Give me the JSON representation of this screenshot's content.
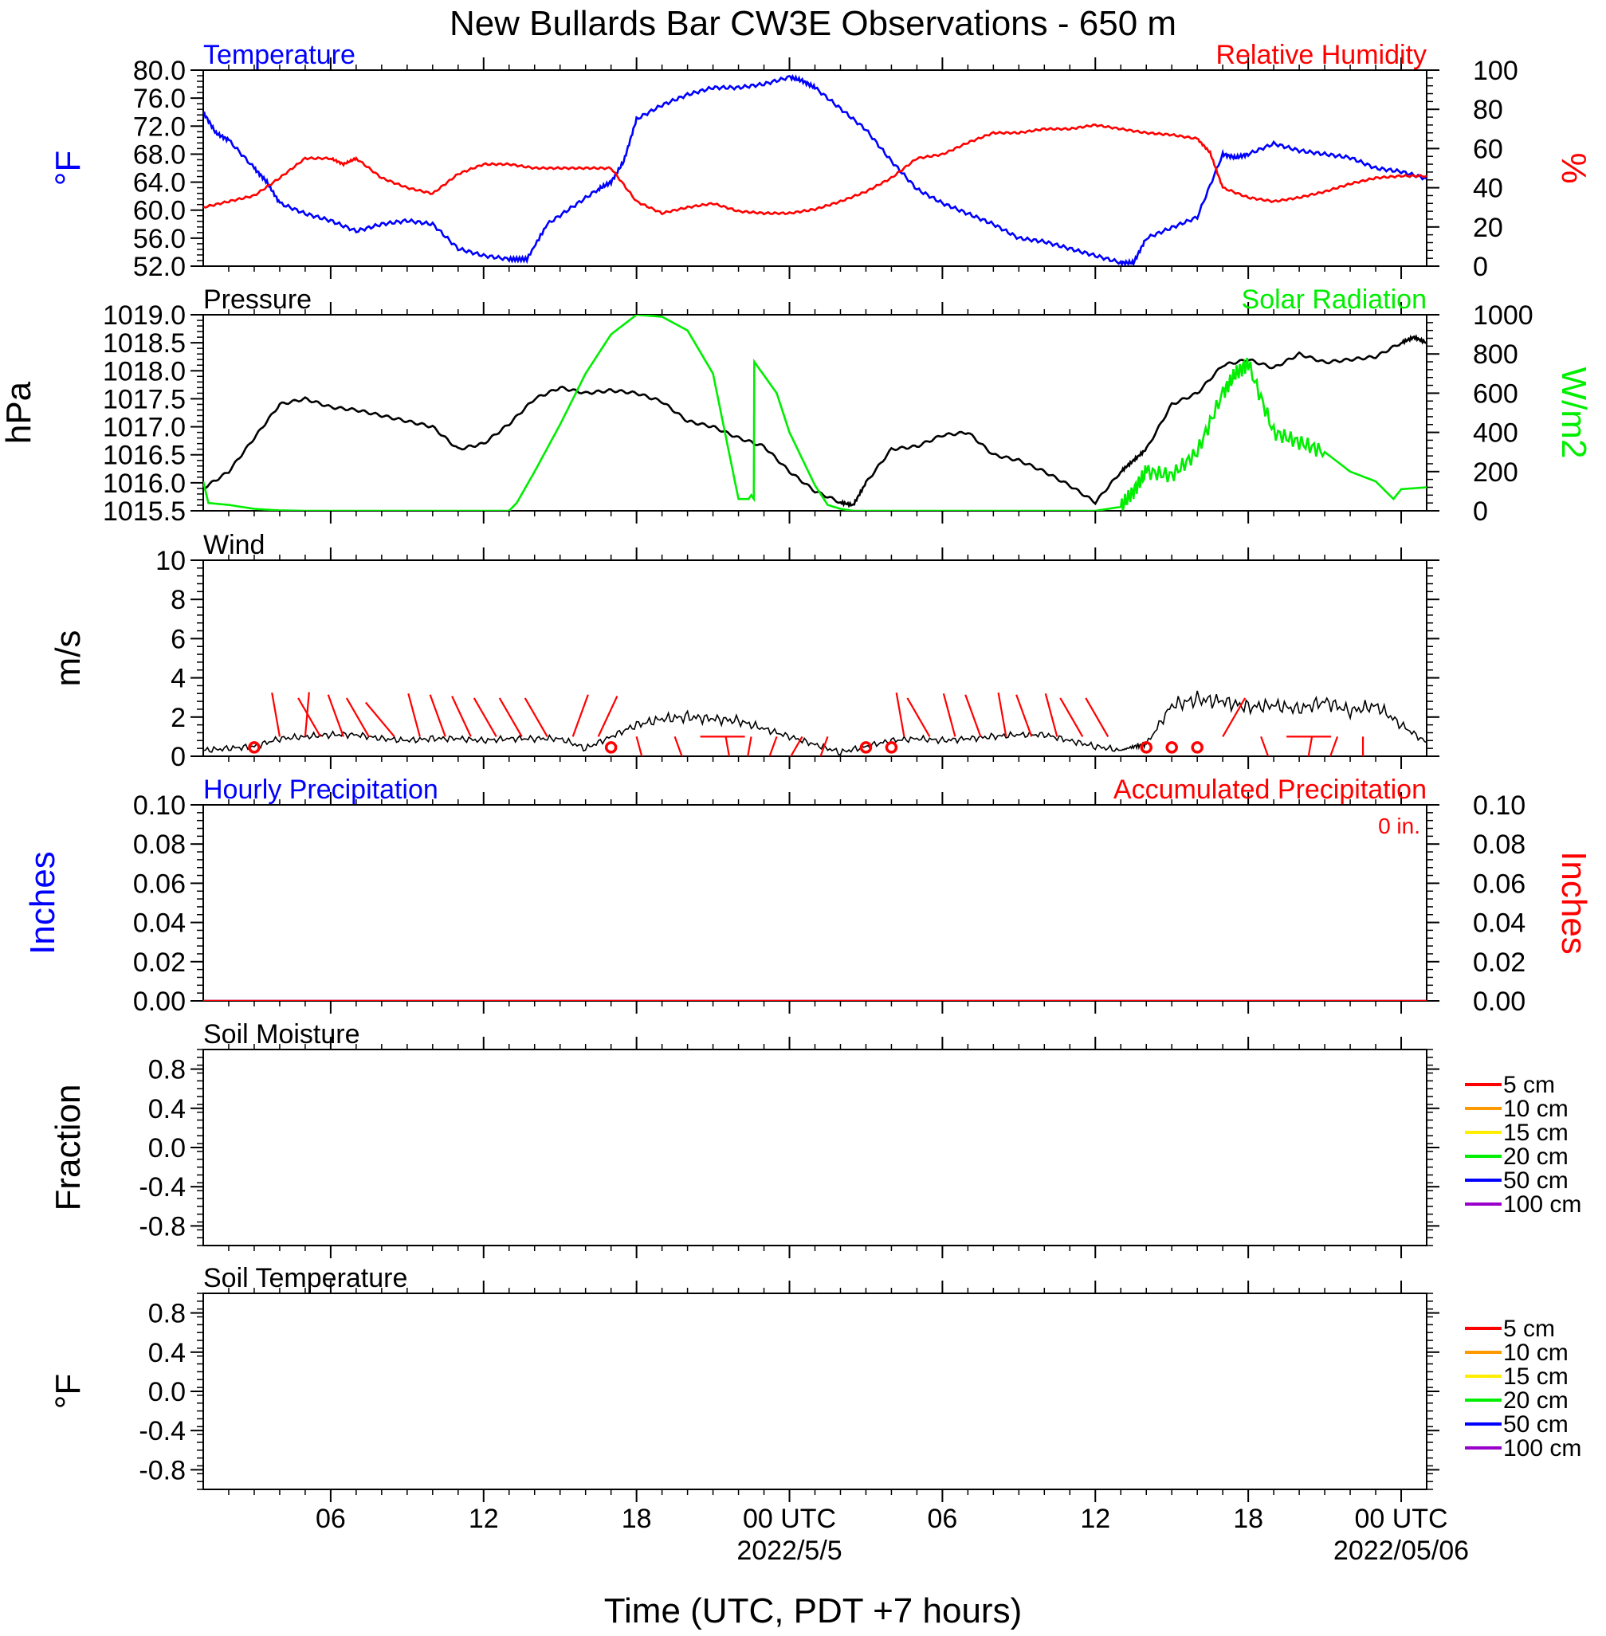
{
  "title": "New Bullards Bar CW3E Observations - 650 m",
  "xaxis": {
    "title": "Time (UTC, PDT +7 hours)",
    "hours_range": [
      0,
      48
    ],
    "ticks": [
      {
        "h": 5,
        "label": "06"
      },
      {
        "h": 11,
        "label": "12"
      },
      {
        "h": 17,
        "label": "18"
      },
      {
        "h": 23,
        "label": "00 UTC",
        "sub": "2022/5/5"
      },
      {
        "h": 29,
        "label": "06"
      },
      {
        "h": 35,
        "label": "12"
      },
      {
        "h": 41,
        "label": "18"
      },
      {
        "h": 47,
        "label": "00 UTC",
        "sub": "2022/05/06"
      }
    ]
  },
  "chart_data": [
    {
      "type": "line",
      "title": "Temperature",
      "title_right": "Relative Humidity",
      "ylabel": "°F",
      "ylabel_right": "%",
      "ylim": [
        52,
        80
      ],
      "ylim_right": [
        0,
        100
      ],
      "yticks": [
        "52.0",
        "56.0",
        "60.0",
        "64.0",
        "68.0",
        "72.0",
        "76.0",
        "80.0"
      ],
      "yticks_right": [
        "0",
        "20",
        "40",
        "60",
        "80",
        "100"
      ],
      "colors": {
        "left": "#0000ff",
        "right": "#ff0000"
      },
      "series": [
        {
          "name": "Temperature",
          "axis": "left",
          "color": "#0000ff",
          "x": [
            0,
            0.5,
            1,
            2,
            2.5,
            3,
            4,
            5,
            6,
            7,
            8,
            9,
            10,
            11,
            12,
            12.7,
            13.5,
            14.5,
            15.5,
            16,
            16.5,
            17,
            18,
            19,
            20,
            21,
            22,
            23,
            23.5,
            24,
            25,
            26,
            27,
            28,
            29,
            30,
            31,
            32,
            33,
            34,
            35,
            36,
            36.5,
            37,
            38,
            39,
            40,
            40.5,
            41,
            42,
            43,
            44,
            45,
            46,
            47,
            48
          ],
          "y": [
            74,
            71,
            70,
            66,
            64,
            61,
            59.5,
            58.5,
            57,
            58,
            58.5,
            58,
            54.5,
            53.5,
            53,
            53,
            58,
            60.5,
            63,
            64,
            67,
            73,
            75,
            76.5,
            77.5,
            77.5,
            78,
            79,
            78.5,
            77.5,
            74.5,
            71.5,
            67,
            63,
            61,
            59.5,
            58,
            56,
            55.5,
            54.5,
            53.5,
            52.5,
            52.5,
            56,
            57.5,
            59,
            68,
            67.5,
            68,
            69.5,
            68.5,
            68,
            67.5,
            66,
            65.5,
            64.5
          ]
        },
        {
          "name": "Relative Humidity",
          "axis": "right",
          "color": "#ff0000",
          "x": [
            0,
            1,
            2,
            3,
            4,
            5,
            5.5,
            6,
            7,
            8,
            9,
            10,
            11,
            12,
            13,
            14,
            15,
            16,
            17,
            18,
            19,
            20,
            21,
            22,
            23,
            24,
            25,
            26,
            27,
            28,
            29,
            30,
            31,
            32,
            33,
            34,
            35,
            36,
            37,
            38,
            39,
            39.5,
            40,
            41,
            42,
            43,
            44,
            45,
            46,
            47,
            48
          ],
          "y": [
            30,
            33,
            36,
            45,
            55,
            55,
            52,
            55,
            45,
            40,
            37,
            47,
            52,
            52,
            50,
            50,
            50,
            50,
            33,
            27,
            30,
            32,
            28,
            27,
            27,
            29,
            33,
            38,
            45,
            55,
            57,
            63,
            68,
            68,
            70,
            70,
            72,
            70,
            68,
            67,
            65,
            58,
            40,
            35,
            33,
            35,
            38,
            42,
            45,
            46,
            46
          ]
        },
        {
          "name": "",
          "axis": "right",
          "color": "#0000ff",
          "x": [],
          "y": []
        }
      ]
    },
    {
      "type": "line",
      "title": "Pressure",
      "title_right": "Solar Radiation",
      "ylabel": "hPa",
      "ylabel_right": "W/m2",
      "ylim": [
        1015.5,
        1019.0
      ],
      "ylim_right": [
        0,
        1000
      ],
      "yticks": [
        "1015.5",
        "1016.0",
        "1016.5",
        "1017.0",
        "1017.5",
        "1018.0",
        "1018.5",
        "1019.0"
      ],
      "yticks_right": [
        "0",
        "200",
        "400",
        "600",
        "800",
        "1000"
      ],
      "series": [
        {
          "name": "Pressure",
          "axis": "left",
          "color": "#000000",
          "x": [
            0,
            1,
            2,
            3,
            4,
            5,
            6,
            7,
            8,
            9,
            10,
            11,
            12,
            13,
            14,
            15,
            16,
            17,
            18,
            19,
            20,
            21,
            22,
            23,
            24,
            25,
            25.5,
            26,
            27,
            28,
            29,
            30,
            31,
            32,
            33,
            34,
            35,
            36,
            36.5,
            37,
            38,
            39,
            40,
            41,
            42,
            43,
            44,
            45,
            46,
            47,
            47.5,
            48
          ],
          "y": [
            1015.9,
            1016.2,
            1016.8,
            1017.4,
            1017.5,
            1017.35,
            1017.3,
            1017.2,
            1017.1,
            1017.0,
            1016.6,
            1016.7,
            1017.05,
            1017.5,
            1017.7,
            1017.6,
            1017.65,
            1017.6,
            1017.45,
            1017.1,
            1017.0,
            1016.8,
            1016.65,
            1016.2,
            1015.85,
            1015.65,
            1015.6,
            1016.0,
            1016.6,
            1016.65,
            1016.85,
            1016.9,
            1016.5,
            1016.4,
            1016.2,
            1015.95,
            1015.65,
            1016.2,
            1016.4,
            1016.6,
            1017.4,
            1017.6,
            1018.1,
            1018.2,
            1018.05,
            1018.3,
            1018.15,
            1018.2,
            1018.25,
            1018.5,
            1018.6,
            1018.5
          ]
        },
        {
          "name": "Solar Radiation",
          "axis": "right",
          "color": "#00ee00",
          "x": [
            0,
            0.2,
            1,
            2,
            3,
            4,
            5,
            6,
            7,
            8,
            9,
            10,
            11,
            12,
            12.3,
            13,
            14,
            15,
            16,
            17,
            18,
            19,
            20,
            21,
            21.02,
            21.4,
            21.5,
            21.6,
            21.62,
            22.5,
            23,
            24,
            24.5,
            25,
            25.5,
            26,
            27,
            28,
            29,
            30,
            31,
            32,
            33,
            34,
            35,
            36,
            36.5,
            37,
            38,
            39,
            40,
            40.5,
            41,
            42,
            43,
            44,
            45,
            46,
            46.7,
            47,
            48
          ],
          "y": [
            150,
            40,
            30,
            10,
            2,
            0,
            0,
            0,
            0,
            0,
            0,
            0,
            0,
            0,
            40,
            200,
            440,
            700,
            900,
            1000,
            990,
            920,
            700,
            60,
            60,
            60,
            80,
            60,
            760,
            600,
            400,
            130,
            30,
            10,
            0,
            0,
            0,
            0,
            0,
            0,
            0,
            0,
            0,
            0,
            0,
            20,
            100,
            200,
            180,
            300,
            600,
            700,
            750,
            400,
            350,
            300,
            200,
            150,
            60,
            110,
            120
          ]
        }
      ]
    },
    {
      "type": "line",
      "title": "Wind",
      "ylabel": "m/s",
      "ylim": [
        0,
        10
      ],
      "yticks": [
        "0",
        "2",
        "4",
        "6",
        "8",
        "10"
      ],
      "series": [
        {
          "name": "Wind",
          "color": "#000000",
          "x": [
            0,
            1,
            2,
            3,
            4,
            5,
            6,
            7,
            8,
            9,
            10,
            11,
            12,
            13,
            14,
            15,
            16,
            17,
            18,
            19,
            20,
            21,
            22,
            23,
            24,
            25,
            26,
            27,
            28,
            29,
            30,
            31,
            32,
            33,
            34,
            35,
            36,
            36.5,
            37,
            38,
            39,
            40,
            41,
            42,
            43,
            44,
            45,
            46,
            47,
            48
          ],
          "y": [
            0.3,
            0.4,
            0.5,
            0.9,
            1.0,
            1.1,
            1.1,
            0.9,
            0.8,
            0.9,
            0.9,
            0.8,
            0.9,
            0.9,
            0.9,
            0.4,
            1.0,
            1.6,
            1.9,
            2.0,
            1.9,
            1.8,
            1.4,
            1.0,
            0.6,
            0.2,
            0.5,
            0.8,
            0.9,
            0.8,
            0.9,
            1.0,
            1.1,
            1.1,
            0.8,
            0.5,
            0.3,
            0.5,
            0.6,
            2.6,
            2.9,
            2.8,
            2.5,
            2.6,
            2.4,
            2.8,
            2.3,
            2.6,
            1.6,
            0.7
          ]
        }
      ],
      "barbs": [
        {
          "h": 2.0,
          "calm": true
        },
        {
          "h": 3.0,
          "dir": 350
        },
        {
          "h": 4.0,
          "dir": 5
        },
        {
          "h": 4.6,
          "dir": 330
        },
        {
          "h": 5.5,
          "dir": 340
        },
        {
          "h": 6.5,
          "dir": 330
        },
        {
          "h": 7.5,
          "dir": 320
        },
        {
          "h": 8.5,
          "dir": 345
        },
        {
          "h": 9.5,
          "dir": 340
        },
        {
          "h": 10.5,
          "dir": 335
        },
        {
          "h": 11.5,
          "dir": 330
        },
        {
          "h": 12.5,
          "dir": 330
        },
        {
          "h": 13.5,
          "dir": 330
        },
        {
          "h": 14.5,
          "dir": 20
        },
        {
          "h": 15.5,
          "dir": 25
        },
        {
          "h": 16.0,
          "calm": true
        },
        {
          "h": 17.0,
          "dir": 165
        },
        {
          "h": 18.5,
          "dir": 160
        },
        {
          "h": 19.5,
          "dir": 90
        },
        {
          "h": 20.5,
          "dir": 170
        },
        {
          "h": 21.5,
          "dir": 190
        },
        {
          "h": 22.5,
          "dir": 200
        },
        {
          "h": 23.5,
          "dir": 210
        },
        {
          "h": 24.5,
          "dir": 200
        },
        {
          "h": 26.0,
          "calm": true
        },
        {
          "h": 27.0,
          "calm": true
        },
        {
          "h": 27.5,
          "dir": 350
        },
        {
          "h": 28.5,
          "dir": 330
        },
        {
          "h": 29.5,
          "dir": 345
        },
        {
          "h": 30.5,
          "dir": 340
        },
        {
          "h": 31.5,
          "dir": 350
        },
        {
          "h": 32.5,
          "dir": 340
        },
        {
          "h": 33.5,
          "dir": 345
        },
        {
          "h": 34.5,
          "dir": 330
        },
        {
          "h": 35.5,
          "dir": 330
        },
        {
          "h": 37.0,
          "calm": true
        },
        {
          "h": 38.0,
          "calm": true
        },
        {
          "h": 39.0,
          "calm": true
        },
        {
          "h": 40.0,
          "dir": 30
        },
        {
          "h": 41.5,
          "dir": 160
        },
        {
          "h": 42.5,
          "dir": 90
        },
        {
          "h": 43.5,
          "dir": 190
        },
        {
          "h": 44.5,
          "dir": 200
        },
        {
          "h": 45.5,
          "dir": 180
        }
      ]
    },
    {
      "type": "line",
      "title": "Hourly Precipitation",
      "title_right": "Accumulated Precipitation",
      "annotation": "0 in.",
      "ylabel": "Inches",
      "ylabel_right": "Inches",
      "ylim": [
        0,
        0.1
      ],
      "ylim_right": [
        0,
        0.1
      ],
      "yticks": [
        "0.00",
        "0.02",
        "0.04",
        "0.06",
        "0.08",
        "0.10"
      ],
      "yticks_right": [
        "0.00",
        "0.02",
        "0.04",
        "0.06",
        "0.08",
        "0.10"
      ],
      "series": [
        {
          "name": "Hourly Precipitation",
          "axis": "left",
          "color": "#0000ff",
          "x": [
            0,
            48
          ],
          "y": [
            0,
            0
          ]
        },
        {
          "name": "Accumulated Precipitation",
          "axis": "right",
          "color": "#ff0000",
          "x": [
            0,
            48
          ],
          "y": [
            0,
            0
          ]
        }
      ]
    },
    {
      "type": "line",
      "title": "Soil Moisture",
      "ylabel": "Fraction",
      "ylim": [
        -1,
        1
      ],
      "yticks": [
        "-0.8",
        "-0.4",
        "0.0",
        "0.4",
        "0.8"
      ],
      "legend": [
        {
          "label": "5 cm",
          "color": "#ff0000"
        },
        {
          "label": "10 cm",
          "color": "#ff9900"
        },
        {
          "label": "15 cm",
          "color": "#ffee00"
        },
        {
          "label": "20 cm",
          "color": "#00ee00"
        },
        {
          "label": "50 cm",
          "color": "#0000ff"
        },
        {
          "label": "100 cm",
          "color": "#9900cc"
        }
      ],
      "series": []
    },
    {
      "type": "line",
      "title": "Soil Temperature",
      "ylabel": "°F",
      "ylim": [
        -1,
        1
      ],
      "yticks": [
        "-0.8",
        "-0.4",
        "0.0",
        "0.4",
        "0.8"
      ],
      "legend": [
        {
          "label": "5 cm",
          "color": "#ff0000"
        },
        {
          "label": "10 cm",
          "color": "#ff9900"
        },
        {
          "label": "15 cm",
          "color": "#ffee00"
        },
        {
          "label": "20 cm",
          "color": "#00ee00"
        },
        {
          "label": "50 cm",
          "color": "#0000ff"
        },
        {
          "label": "100 cm",
          "color": "#9900cc"
        }
      ],
      "series": []
    }
  ]
}
